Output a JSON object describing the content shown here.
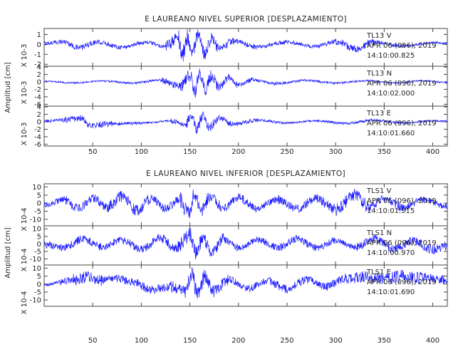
{
  "chart_data": [
    {
      "type": "line",
      "title": "E LAUREANO NIVEL SUPERIOR [DESPLAZAMIENTO]",
      "ylabel": "Amplitud [cm]",
      "xlim": [
        0,
        415
      ],
      "x_ticks": [
        50,
        100,
        150,
        200,
        250,
        300,
        350,
        400
      ],
      "series_color": "#1a1aff",
      "panels": [
        {
          "name": "TL13 V",
          "date": "APR 06 (096), 2019",
          "time": "14:10:00.825",
          "scale_label": "X 10-3",
          "ylim": [
            -2.2,
            1.6
          ],
          "y_ticks": [
            "1",
            "0",
            "-1",
            "-2"
          ],
          "y_tick_values": [
            1,
            0,
            -1,
            -2
          ],
          "peaks": [
            {
              "x": 2,
              "y": 0.2
            },
            {
              "x": 20,
              "y": 0.5
            },
            {
              "x": 35,
              "y": -0.6
            },
            {
              "x": 55,
              "y": 0.4
            },
            {
              "x": 80,
              "y": -0.5
            },
            {
              "x": 105,
              "y": 0.4
            },
            {
              "x": 125,
              "y": -0.4
            },
            {
              "x": 138,
              "y": 1.3
            },
            {
              "x": 142,
              "y": -2.0
            },
            {
              "x": 148,
              "y": 1.4
            },
            {
              "x": 152,
              "y": -1.7
            },
            {
              "x": 158,
              "y": 1.5
            },
            {
              "x": 165,
              "y": -1.6
            },
            {
              "x": 172,
              "y": 1.2
            },
            {
              "x": 180,
              "y": -0.9
            },
            {
              "x": 195,
              "y": 0.6
            },
            {
              "x": 220,
              "y": -0.5
            },
            {
              "x": 250,
              "y": 0.4
            },
            {
              "x": 280,
              "y": -0.4
            },
            {
              "x": 300,
              "y": 0.5
            },
            {
              "x": 320,
              "y": -0.8
            },
            {
              "x": 340,
              "y": 0.4
            },
            {
              "x": 370,
              "y": -0.3
            },
            {
              "x": 400,
              "y": 0.3
            },
            {
              "x": 413,
              "y": 0.2
            }
          ]
        },
        {
          "name": "TL13 N",
          "date": "APR 06 (096), 2019",
          "time": "14:10:02.000",
          "scale_label": "X 10-3",
          "ylim": [
            -6.5,
            4.2
          ],
          "y_ticks": [
            "4",
            "2",
            "0",
            "-2",
            "-4",
            "-6"
          ],
          "y_tick_values": [
            4,
            2,
            0,
            -2,
            -4,
            -6
          ],
          "peaks": [
            {
              "x": 2,
              "y": 0.3
            },
            {
              "x": 30,
              "y": -0.5
            },
            {
              "x": 60,
              "y": 0.5
            },
            {
              "x": 90,
              "y": -0.6
            },
            {
              "x": 120,
              "y": 0.8
            },
            {
              "x": 140,
              "y": -2.0
            },
            {
              "x": 150,
              "y": 3.5
            },
            {
              "x": 155,
              "y": -4.5
            },
            {
              "x": 160,
              "y": 3.8
            },
            {
              "x": 166,
              "y": -4.0
            },
            {
              "x": 172,
              "y": 3.0
            },
            {
              "x": 180,
              "y": -2.5
            },
            {
              "x": 190,
              "y": 2.0
            },
            {
              "x": 200,
              "y": -1.5
            },
            {
              "x": 215,
              "y": 1.0
            },
            {
              "x": 240,
              "y": -0.8
            },
            {
              "x": 270,
              "y": 0.7
            },
            {
              "x": 300,
              "y": -0.6
            },
            {
              "x": 330,
              "y": 0.6
            },
            {
              "x": 360,
              "y": -0.5
            },
            {
              "x": 390,
              "y": 0.5
            },
            {
              "x": 413,
              "y": -0.3
            }
          ]
        },
        {
          "name": "TL13 E",
          "date": "APR 06 (096), 2019",
          "time": "14:10:01.660",
          "scale_label": "X 10-3",
          "ylim": [
            -6.5,
            4.2
          ],
          "y_ticks": [
            "4",
            "2",
            "0",
            "-2",
            "-4",
            "-6"
          ],
          "y_tick_values": [
            4,
            2,
            0,
            -2,
            -4,
            -6
          ],
          "peaks": [
            {
              "x": 2,
              "y": 0.5
            },
            {
              "x": 20,
              "y": 1.0
            },
            {
              "x": 40,
              "y": 1.8
            },
            {
              "x": 45,
              "y": -1.8
            },
            {
              "x": 70,
              "y": -1.0
            },
            {
              "x": 100,
              "y": -0.6
            },
            {
              "x": 130,
              "y": 0.4
            },
            {
              "x": 145,
              "y": -1.5
            },
            {
              "x": 152,
              "y": 3.0
            },
            {
              "x": 157,
              "y": -3.5
            },
            {
              "x": 163,
              "y": 2.8
            },
            {
              "x": 170,
              "y": -2.5
            },
            {
              "x": 180,
              "y": 1.8
            },
            {
              "x": 195,
              "y": -1.2
            },
            {
              "x": 220,
              "y": 0.8
            },
            {
              "x": 250,
              "y": -0.6
            },
            {
              "x": 280,
              "y": 0.6
            },
            {
              "x": 310,
              "y": -0.8
            },
            {
              "x": 340,
              "y": 0.8
            },
            {
              "x": 370,
              "y": -0.6
            },
            {
              "x": 400,
              "y": 0.5
            },
            {
              "x": 413,
              "y": 0.3
            }
          ]
        }
      ]
    },
    {
      "type": "line",
      "title": "E LAUREANO NIVEL INFERIOR [DESPLAZAMIENTO]",
      "ylabel": "Amplitud [cm]",
      "xlim": [
        0,
        415
      ],
      "x_ticks": [
        50,
        100,
        150,
        200,
        250,
        300,
        350,
        400
      ],
      "series_color": "#1a1aff",
      "panels": [
        {
          "name": "TLS1 V",
          "date": "APR 06 (096), 2019",
          "time": "14:10:01.515",
          "scale_label": "X 10-4",
          "ylim": [
            -14,
            12
          ],
          "y_ticks": [
            "10",
            "5",
            "0",
            "-5",
            "-10"
          ],
          "y_tick_values": [
            10,
            5,
            0,
            -5,
            -10
          ],
          "peaks": [
            {
              "x": 2,
              "y": -2
            },
            {
              "x": 20,
              "y": 4
            },
            {
              "x": 35,
              "y": -6
            },
            {
              "x": 50,
              "y": 6
            },
            {
              "x": 65,
              "y": -4
            },
            {
              "x": 80,
              "y": 8
            },
            {
              "x": 95,
              "y": -8
            },
            {
              "x": 110,
              "y": 5
            },
            {
              "x": 125,
              "y": -6
            },
            {
              "x": 140,
              "y": 4
            },
            {
              "x": 148,
              "y": -12
            },
            {
              "x": 155,
              "y": 9
            },
            {
              "x": 162,
              "y": -10
            },
            {
              "x": 170,
              "y": 7
            },
            {
              "x": 185,
              "y": -5
            },
            {
              "x": 200,
              "y": 6
            },
            {
              "x": 220,
              "y": -5
            },
            {
              "x": 240,
              "y": 4
            },
            {
              "x": 260,
              "y": -6
            },
            {
              "x": 280,
              "y": 5
            },
            {
              "x": 300,
              "y": -7
            },
            {
              "x": 320,
              "y": 9
            },
            {
              "x": 335,
              "y": -4
            },
            {
              "x": 350,
              "y": 6
            },
            {
              "x": 370,
              "y": -5
            },
            {
              "x": 390,
              "y": 4
            },
            {
              "x": 413,
              "y": -3
            }
          ]
        },
        {
          "name": "TLS1 N",
          "date": "APR 06 (096), 2019",
          "time": "14:10:00.970",
          "scale_label": "X 10-4",
          "ylim": [
            -14,
            12
          ],
          "y_ticks": [
            "10",
            "5",
            "0",
            "-5",
            "-10"
          ],
          "y_tick_values": [
            10,
            5,
            0,
            -5,
            -10
          ],
          "peaks": [
            {
              "x": 2,
              "y": -1
            },
            {
              "x": 20,
              "y": -5
            },
            {
              "x": 40,
              "y": 6
            },
            {
              "x": 60,
              "y": -4
            },
            {
              "x": 80,
              "y": 5
            },
            {
              "x": 100,
              "y": -6
            },
            {
              "x": 120,
              "y": 7
            },
            {
              "x": 135,
              "y": -5
            },
            {
              "x": 150,
              "y": 10
            },
            {
              "x": 157,
              "y": -12
            },
            {
              "x": 163,
              "y": 8
            },
            {
              "x": 172,
              "y": -9
            },
            {
              "x": 185,
              "y": 6
            },
            {
              "x": 200,
              "y": -5
            },
            {
              "x": 220,
              "y": 5
            },
            {
              "x": 240,
              "y": -4
            },
            {
              "x": 260,
              "y": 6
            },
            {
              "x": 280,
              "y": -5
            },
            {
              "x": 300,
              "y": 4
            },
            {
              "x": 320,
              "y": -4
            },
            {
              "x": 340,
              "y": 6
            },
            {
              "x": 360,
              "y": -6
            },
            {
              "x": 380,
              "y": 4
            },
            {
              "x": 400,
              "y": -7
            },
            {
              "x": 413,
              "y": -2
            }
          ]
        },
        {
          "name": "TLS1 E",
          "date": "APR 06 (096), 2019",
          "time": "14:10:01.690",
          "scale_label": "X 10-4",
          "ylim": [
            -14,
            12
          ],
          "y_ticks": [
            "10",
            "5",
            "0",
            "-5",
            "-10"
          ],
          "y_tick_values": [
            10,
            5,
            0,
            -5,
            -10
          ],
          "peaks": [
            {
              "x": 2,
              "y": -1
            },
            {
              "x": 15,
              "y": 2
            },
            {
              "x": 30,
              "y": 5
            },
            {
              "x": 45,
              "y": 8
            },
            {
              "x": 60,
              "y": 4
            },
            {
              "x": 75,
              "y": 6
            },
            {
              "x": 90,
              "y": 3
            },
            {
              "x": 110,
              "y": -6
            },
            {
              "x": 130,
              "y": -3
            },
            {
              "x": 145,
              "y": -8
            },
            {
              "x": 152,
              "y": 10
            },
            {
              "x": 158,
              "y": -13
            },
            {
              "x": 165,
              "y": 9
            },
            {
              "x": 175,
              "y": -8
            },
            {
              "x": 190,
              "y": 5
            },
            {
              "x": 210,
              "y": -5
            },
            {
              "x": 230,
              "y": 4
            },
            {
              "x": 250,
              "y": -6
            },
            {
              "x": 270,
              "y": 5
            },
            {
              "x": 290,
              "y": -3
            },
            {
              "x": 310,
              "y": 6
            },
            {
              "x": 330,
              "y": 8
            },
            {
              "x": 350,
              "y": 6
            },
            {
              "x": 370,
              "y": 9
            },
            {
              "x": 390,
              "y": 7
            },
            {
              "x": 413,
              "y": 5
            }
          ]
        }
      ]
    }
  ]
}
